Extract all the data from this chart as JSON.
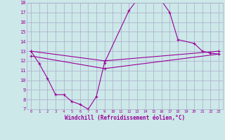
{
  "xlabel": "Windchill (Refroidissement éolien,°C)",
  "bg_color": "#cce8e8",
  "grid_color": "#aaaacc",
  "line_color": "#990099",
  "xlim": [
    -0.5,
    23.5
  ],
  "ylim": [
    7,
    18
  ],
  "yticks": [
    7,
    8,
    9,
    10,
    11,
    12,
    13,
    14,
    15,
    16,
    17,
    18
  ],
  "xticks": [
    0,
    1,
    2,
    3,
    4,
    5,
    6,
    7,
    8,
    9,
    10,
    11,
    12,
    13,
    14,
    15,
    16,
    17,
    18,
    19,
    20,
    21,
    22,
    23
  ],
  "line1_x": [
    0,
    1,
    2,
    3,
    4,
    5,
    6,
    7,
    8,
    9,
    12,
    13,
    14,
    15,
    16,
    17,
    18,
    20,
    21,
    22,
    23
  ],
  "line1_y": [
    13.0,
    11.7,
    10.2,
    8.5,
    8.5,
    7.8,
    7.5,
    7.0,
    8.3,
    11.8,
    17.2,
    18.3,
    18.2,
    18.3,
    18.2,
    17.0,
    14.2,
    13.8,
    13.0,
    12.8,
    12.7
  ],
  "line2_x": [
    0,
    9,
    23
  ],
  "line2_y": [
    13.0,
    12.0,
    13.0
  ],
  "line3_x": [
    0,
    9,
    23
  ],
  "line3_y": [
    12.5,
    11.2,
    12.7
  ]
}
